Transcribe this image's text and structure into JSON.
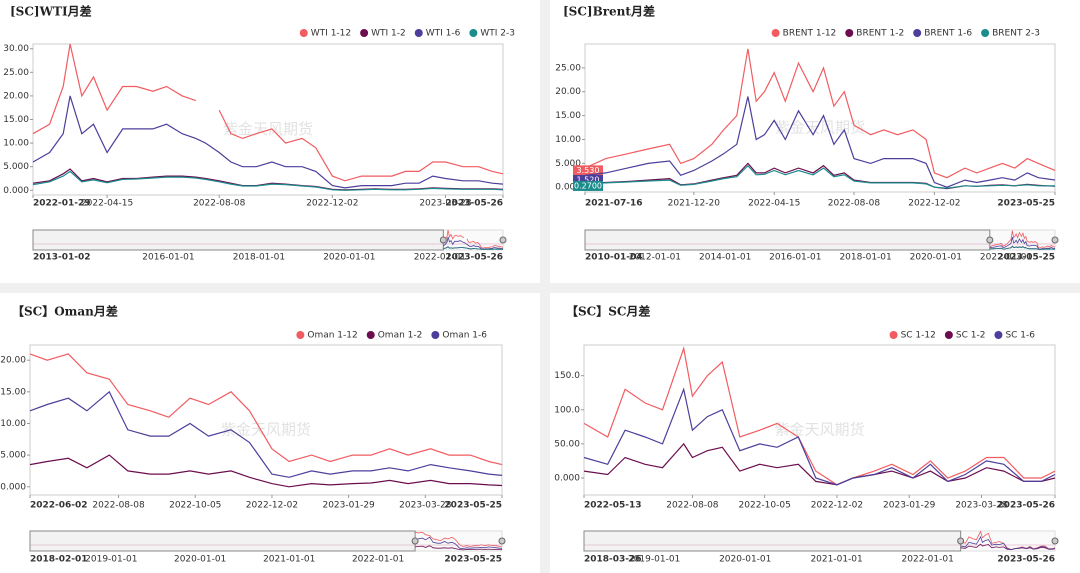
{
  "chart_data": [
    {
      "type": "line",
      "title": "[SC]WTI月差",
      "watermark": "紫金天风期货",
      "x": [
        "2022-01-29",
        "2022-02-15",
        "2022-03-01",
        "2022-03-08",
        "2022-03-20",
        "2022-04-01",
        "2022-04-15",
        "2022-05-01",
        "2022-05-15",
        "2022-06-01",
        "2022-06-15",
        "2022-07-01",
        "2022-07-15",
        "2022-07-25",
        "2022-08-08",
        "2022-08-20",
        "2022-09-01",
        "2022-09-15",
        "2022-10-01",
        "2022-10-15",
        "2022-11-01",
        "2022-11-15",
        "2022-12-02",
        "2022-12-15",
        "2023-01-01",
        "2023-01-15",
        "2023-02-01",
        "2023-02-15",
        "2023-03-01",
        "2023-03-15",
        "2023-03-28",
        "2023-04-15",
        "2023-05-01",
        "2023-05-15",
        "2023-05-26"
      ],
      "series": [
        {
          "name": "WTI 1-12",
          "color": "#f15c61",
          "values": [
            12,
            14,
            22,
            31,
            20,
            24,
            17,
            22,
            22,
            21,
            22,
            20,
            19,
            null,
            17,
            12,
            11,
            12,
            13,
            10,
            11,
            9,
            3,
            2,
            3,
            3,
            3,
            4,
            4,
            6,
            6,
            5,
            5,
            4,
            3.5
          ]
        },
        {
          "name": "WTI 1-2",
          "color": "#6b0d4e",
          "values": [
            1.5,
            2,
            3.5,
            4.5,
            2,
            2.5,
            1.8,
            2.5,
            2.5,
            2.8,
            3,
            3,
            2.8,
            2.5,
            2,
            1.5,
            1,
            1,
            1.5,
            1.3,
            1,
            0.8,
            0.2,
            0.1,
            0.2,
            0.3,
            0.2,
            0.2,
            0.3,
            0.5,
            0.4,
            0.3,
            0.3,
            0.3,
            0.2
          ]
        },
        {
          "name": "WTI 1-6",
          "color": "#4b3f9b",
          "values": [
            6,
            8,
            12,
            20,
            12,
            14,
            8,
            13,
            13,
            13,
            14,
            12,
            11,
            10,
            8,
            6,
            5,
            5,
            6,
            5,
            5,
            4,
            1,
            0.5,
            1,
            1,
            1,
            1.5,
            1.5,
            3,
            2.5,
            2,
            2,
            1.5,
            1.3
          ]
        },
        {
          "name": "WTI 2-3",
          "color": "#1a8c8c",
          "values": [
            1.2,
            1.8,
            3,
            4,
            1.8,
            2.2,
            1.6,
            2.3,
            2.4,
            2.6,
            2.8,
            2.8,
            2.6,
            2.3,
            1.8,
            1.3,
            0.9,
            0.9,
            1.3,
            1.2,
            0.9,
            0.7,
            0.1,
            0,
            0.1,
            0.2,
            0.1,
            0.1,
            0.2,
            0.4,
            0.3,
            0.2,
            0.2,
            0.2,
            0.1
          ]
        }
      ],
      "xlim": [
        "2022-01-29",
        "2023-05-26"
      ],
      "xticks": [
        "2022-01-29",
        "2022-04-15",
        "2022-08-08",
        "2022-12-02",
        "2023-03-28",
        "2023-05-26"
      ],
      "ylim": [
        -1,
        31
      ],
      "yticks": [
        {
          "value": 0,
          "label": "0.000"
        },
        {
          "value": 5,
          "label": "5.000"
        },
        {
          "value": 10,
          "label": "10.00"
        },
        {
          "value": 15,
          "label": "15.00"
        },
        {
          "value": 20,
          "label": "20.00"
        },
        {
          "value": 25,
          "label": "25.00"
        },
        {
          "value": 30,
          "label": "30.00"
        }
      ],
      "navigator": {
        "xlim": [
          "2013-01-02",
          "2023-05-26"
        ],
        "xticks": [
          "2013-01-02",
          "2016-01-01",
          "2018-01-01",
          "2020-01-01",
          "2022-01-01",
          "2023-05-26"
        ]
      }
    },
    {
      "type": "line",
      "title": "[SC]Brent月差",
      "watermark": "紫金天风期货",
      "x": [
        "2021-07-16",
        "2021-08-15",
        "2021-09-15",
        "2021-10-15",
        "2021-11-15",
        "2021-12-01",
        "2021-12-20",
        "2022-01-15",
        "2022-02-01",
        "2022-02-20",
        "2022-03-08",
        "2022-03-20",
        "2022-04-01",
        "2022-04-15",
        "2022-05-01",
        "2022-05-20",
        "2022-06-10",
        "2022-06-25",
        "2022-07-10",
        "2022-07-25",
        "2022-08-08",
        "2022-09-01",
        "2022-09-20",
        "2022-10-10",
        "2022-11-01",
        "2022-11-20",
        "2022-12-02",
        "2022-12-20",
        "2023-01-15",
        "2023-02-01",
        "2023-02-20",
        "2023-03-10",
        "2023-03-28",
        "2023-04-15",
        "2023-05-01",
        "2023-05-25"
      ],
      "series": [
        {
          "name": "BRENT 1-12",
          "color": "#f15c61",
          "values": [
            4,
            6,
            7,
            8,
            9,
            5,
            6,
            9,
            12,
            15,
            29,
            18,
            20,
            24,
            18,
            26,
            20,
            25,
            17,
            20,
            13,
            11,
            12,
            11,
            12,
            10,
            3,
            2,
            4,
            3,
            4,
            5,
            4,
            6,
            5,
            3.53
          ],
          "end_label": "3.530"
        },
        {
          "name": "BRENT 1-2",
          "color": "#6b0d4e",
          "values": [
            0.8,
            1,
            1.2,
            1.5,
            1.8,
            0.5,
            0.7,
            1.5,
            2,
            2.5,
            5,
            3,
            3,
            4,
            3,
            4,
            3,
            4.5,
            2.5,
            3,
            1.5,
            1,
            1,
            1,
            1,
            0.8,
            0,
            -0.3,
            0.3,
            0.2,
            0.4,
            0.5,
            0.3,
            0.6,
            0.4,
            0.2
          ]
        },
        {
          "name": "BRENT 1-6",
          "color": "#4b3f9b",
          "values": [
            2.5,
            3,
            4,
            5,
            5.5,
            2.5,
            3.5,
            5.5,
            7,
            9,
            19,
            10,
            11,
            14,
            10,
            16,
            11,
            15,
            9,
            12,
            6,
            5,
            6,
            6,
            6,
            5,
            1,
            0,
            1.5,
            1,
            1.5,
            2,
            1.5,
            3,
            2,
            1.52
          ],
          "end_label": "1.520"
        },
        {
          "name": "BRENT 2-3",
          "color": "#1a8c8c",
          "values": [
            0.7,
            0.9,
            1.1,
            1.3,
            1.5,
            0.4,
            0.6,
            1.3,
            1.8,
            2.2,
            4.5,
            2.6,
            2.7,
            3.5,
            2.6,
            3.5,
            2.6,
            4,
            2.2,
            2.6,
            1.3,
            0.9,
            0.9,
            0.9,
            0.9,
            0.7,
            0,
            -0.2,
            0.3,
            0.2,
            0.3,
            0.4,
            0.3,
            0.5,
            0.3,
            0.27
          ],
          "end_label": "0.2700"
        }
      ],
      "xlim": [
        "2021-07-16",
        "2023-05-25"
      ],
      "xticks": [
        "2021-07-16",
        "2021-12-20",
        "2022-04-15",
        "2022-08-08",
        "2022-12-02",
        "2023-05-25"
      ],
      "ylim": [
        -1,
        30
      ],
      "yticks": [
        {
          "value": 0,
          "label": "0.000"
        },
        {
          "value": 5,
          "label": "5.000"
        },
        {
          "value": 10,
          "label": "10.00"
        },
        {
          "value": 15,
          "label": "15.00"
        },
        {
          "value": 20,
          "label": "20.00"
        },
        {
          "value": 25,
          "label": "25.00"
        }
      ],
      "navigator": {
        "xlim": [
          "2010-01-04",
          "2023-05-25"
        ],
        "xticks": [
          "2010-01-04",
          "2012-01-01",
          "2014-01-01",
          "2016-01-01",
          "2018-01-01",
          "2020-01-01",
          "2022-01-01",
          "2023-05-25"
        ]
      }
    },
    {
      "type": "line",
      "title": "【SC】Oman月差",
      "watermark": "紫金天风期货",
      "x": [
        "2022-06-02",
        "2022-06-15",
        "2022-07-01",
        "2022-07-15",
        "2022-08-01",
        "2022-08-15",
        "2022-09-01",
        "2022-09-15",
        "2022-10-01",
        "2022-10-15",
        "2022-11-01",
        "2022-11-15",
        "2022-12-02",
        "2022-12-15",
        "2023-01-01",
        "2023-01-15",
        "2023-02-01",
        "2023-02-15",
        "2023-03-01",
        "2023-03-15",
        "2023-04-01",
        "2023-04-15",
        "2023-05-01",
        "2023-05-15",
        "2023-05-25"
      ],
      "series": [
        {
          "name": "Oman 1-12",
          "color": "#f15c61",
          "values": [
            21,
            20,
            21,
            18,
            17,
            13,
            12,
            11,
            14,
            13,
            15,
            12,
            6,
            4,
            5,
            4,
            5,
            5,
            6,
            5,
            6,
            5,
            5,
            4,
            3.5
          ]
        },
        {
          "name": "Oman 1-2",
          "color": "#6b0d4e",
          "values": [
            3.5,
            4,
            4.5,
            3,
            5,
            2.5,
            2,
            2,
            2.5,
            2,
            2.5,
            1.5,
            0.5,
            0,
            0.5,
            0.3,
            0.5,
            0.6,
            1,
            0.5,
            1,
            0.5,
            0.5,
            0.3,
            0.2
          ]
        },
        {
          "name": "Oman 1-6",
          "color": "#4b3f9b",
          "values": [
            12,
            13,
            14,
            12,
            15,
            9,
            8,
            8,
            10,
            8,
            9,
            7,
            2,
            1.5,
            2.5,
            2,
            2.5,
            2.5,
            3,
            2.5,
            3.5,
            3,
            2.5,
            2,
            1.8
          ]
        }
      ],
      "xlim": [
        "2022-06-02",
        "2023-05-25"
      ],
      "xticks": [
        "2022-06-02",
        "2022-08-08",
        "2022-10-05",
        "2022-12-02",
        "2023-01-29",
        "2023-03-28",
        "2023-05-25"
      ],
      "ylim": [
        -1.3,
        22.4
      ],
      "yticks": [
        {
          "value": 0,
          "label": "0.000"
        },
        {
          "value": 5,
          "label": "5.000"
        },
        {
          "value": 10,
          "label": "10.00"
        },
        {
          "value": 15,
          "label": "15.00"
        },
        {
          "value": 20,
          "label": "20.00"
        }
      ],
      "navigator": {
        "xlim": [
          "2018-02-01",
          "2023-05-25"
        ],
        "xticks": [
          "2018-02-01",
          "2019-01-01",
          "2020-01-01",
          "2021-01-01",
          "2022-01-01",
          "2023-05-25"
        ]
      }
    },
    {
      "type": "line",
      "title": "【SC】SC月差",
      "watermark": "紫金天风期货",
      "x": [
        "2022-05-13",
        "2022-06-01",
        "2022-06-15",
        "2022-07-01",
        "2022-07-15",
        "2022-08-01",
        "2022-08-08",
        "2022-08-20",
        "2022-09-01",
        "2022-09-15",
        "2022-10-01",
        "2022-10-15",
        "2022-11-01",
        "2022-11-15",
        "2022-12-02",
        "2022-12-15",
        "2023-01-01",
        "2023-01-15",
        "2023-02-01",
        "2023-02-15",
        "2023-03-01",
        "2023-03-15",
        "2023-04-01",
        "2023-04-15",
        "2023-05-01",
        "2023-05-15",
        "2023-05-26"
      ],
      "series": [
        {
          "name": "SC 1-12",
          "color": "#f15c61",
          "values": [
            80,
            60,
            130,
            110,
            100,
            190,
            120,
            150,
            170,
            60,
            70,
            80,
            60,
            10,
            -10,
            0,
            10,
            20,
            5,
            25,
            0,
            10,
            30,
            30,
            0,
            0,
            10
          ]
        },
        {
          "name": "SC 1-2",
          "color": "#6b0d4e",
          "values": [
            10,
            5,
            30,
            20,
            15,
            50,
            30,
            40,
            45,
            10,
            20,
            15,
            20,
            -5,
            -10,
            0,
            5,
            10,
            0,
            10,
            -5,
            0,
            15,
            10,
            -5,
            -5,
            0
          ]
        },
        {
          "name": "SC 1-6",
          "color": "#4b3f9b",
          "values": [
            30,
            20,
            70,
            60,
            50,
            130,
            70,
            90,
            100,
            40,
            50,
            45,
            60,
            0,
            -10,
            0,
            5,
            15,
            0,
            20,
            -5,
            5,
            25,
            20,
            -5,
            -5,
            5
          ]
        }
      ],
      "xlim": [
        "2022-05-13",
        "2023-05-26"
      ],
      "xticks": [
        "2022-05-13",
        "2022-08-08",
        "2022-10-05",
        "2022-12-02",
        "2023-01-29",
        "2023-03-28",
        "2023-05-26"
      ],
      "ylim": [
        -25,
        195
      ],
      "yticks": [
        {
          "value": 0,
          "label": "0.000"
        },
        {
          "value": 50,
          "label": "50.00"
        },
        {
          "value": 100,
          "label": "100.0"
        },
        {
          "value": 150,
          "label": "150.0"
        }
      ],
      "navigator": {
        "xlim": [
          "2018-03-26",
          "2023-05-26"
        ],
        "xticks": [
          "2018-03-26",
          "2019-01-01",
          "2020-01-01",
          "2021-01-01",
          "2022-01-01",
          "2023-05-26"
        ]
      }
    }
  ]
}
